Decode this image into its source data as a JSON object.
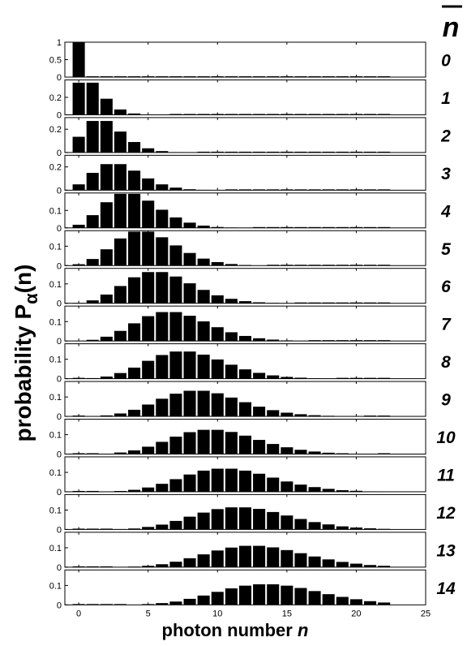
{
  "chart_data": {
    "type": "bar",
    "description_ylabel_main": "probability  P",
    "ylabel_sub": "α",
    "ylabel_tail": "(n)",
    "xlabel_main": "photon number",
    "xlabel_var": "n",
    "header_label": "n",
    "x_ticks": [
      "0",
      "5",
      "10",
      "15",
      "20",
      "25"
    ],
    "x_tick_values": [
      0,
      5,
      10,
      15,
      20,
      25
    ],
    "xlim": [
      -1,
      25
    ],
    "grid": false,
    "panels": [
      {
        "nbar": 0,
        "label": "0",
        "ylim": [
          0,
          1
        ],
        "y_ticks": [
          "0",
          "0.5",
          "1"
        ],
        "y_tick_values": [
          0,
          0.5,
          1
        ]
      },
      {
        "nbar": 1,
        "label": "1",
        "ylim": [
          0,
          0.4
        ],
        "y_ticks": [
          "0",
          "0.2"
        ],
        "y_tick_values": [
          0,
          0.2
        ]
      },
      {
        "nbar": 2,
        "label": "2",
        "ylim": [
          0,
          0.3
        ],
        "y_ticks": [
          "0",
          "0.2"
        ],
        "y_tick_values": [
          0,
          0.2
        ]
      },
      {
        "nbar": 3,
        "label": "3",
        "ylim": [
          0,
          0.3
        ],
        "y_ticks": [
          "0",
          "0.2"
        ],
        "y_tick_values": [
          0,
          0.2
        ]
      },
      {
        "nbar": 4,
        "label": "4",
        "ylim": [
          0,
          0.2
        ],
        "y_ticks": [
          "0",
          "0.1"
        ],
        "y_tick_values": [
          0,
          0.1
        ]
      },
      {
        "nbar": 5,
        "label": "5",
        "ylim": [
          0,
          0.18
        ],
        "y_ticks": [
          "0",
          "0.1"
        ],
        "y_tick_values": [
          0,
          0.1
        ]
      },
      {
        "nbar": 6,
        "label": "6",
        "ylim": [
          0,
          0.18
        ],
        "y_ticks": [
          "0",
          "0.1"
        ],
        "y_tick_values": [
          0,
          0.1
        ]
      },
      {
        "nbar": 7,
        "label": "7",
        "ylim": [
          0,
          0.18
        ],
        "y_ticks": [
          "0",
          "0.1"
        ],
        "y_tick_values": [
          0,
          0.1
        ]
      },
      {
        "nbar": 8,
        "label": "8",
        "ylim": [
          0,
          0.18
        ],
        "y_ticks": [
          "0",
          "0.1"
        ],
        "y_tick_values": [
          0,
          0.1
        ]
      },
      {
        "nbar": 9,
        "label": "9",
        "ylim": [
          0,
          0.18
        ],
        "y_ticks": [
          "0",
          "0.1"
        ],
        "y_tick_values": [
          0,
          0.1
        ]
      },
      {
        "nbar": 10,
        "label": "10",
        "ylim": [
          0,
          0.18
        ],
        "y_ticks": [
          "0",
          "0.1"
        ],
        "y_tick_values": [
          0,
          0.1
        ]
      },
      {
        "nbar": 11,
        "label": "11",
        "ylim": [
          0,
          0.18
        ],
        "y_ticks": [
          "0",
          "0.1"
        ],
        "y_tick_values": [
          0,
          0.1
        ]
      },
      {
        "nbar": 12,
        "label": "12",
        "ylim": [
          0,
          0.18
        ],
        "y_ticks": [
          "0",
          "0.1"
        ],
        "y_tick_values": [
          0,
          0.1
        ]
      },
      {
        "nbar": 13,
        "label": "13",
        "ylim": [
          0,
          0.18
        ],
        "y_ticks": [
          "0",
          "0.1"
        ],
        "y_tick_values": [
          0,
          0.1
        ]
      },
      {
        "nbar": 14,
        "label": "14",
        "ylim": [
          0,
          0.18
        ],
        "y_ticks": [
          "0",
          "0.1"
        ],
        "y_tick_values": [
          0,
          0.1
        ]
      }
    ],
    "x": [
      0,
      1,
      2,
      3,
      4,
      5,
      6,
      7,
      8,
      9,
      10,
      11,
      12,
      13,
      14,
      15,
      16,
      17,
      18,
      19,
      20,
      21,
      22
    ],
    "series": [
      {
        "values": [
          1.0,
          0,
          0,
          0,
          0,
          0,
          0,
          0,
          0,
          0,
          0,
          0,
          0,
          0,
          0,
          0,
          0,
          0,
          0,
          0,
          0,
          0,
          0
        ]
      },
      {
        "values": [
          0.368,
          0.368,
          0.184,
          0.061,
          0.015,
          0.003,
          0.001,
          0,
          0,
          0,
          0,
          0,
          0,
          0,
          0,
          0,
          0,
          0,
          0,
          0,
          0,
          0,
          0
        ]
      },
      {
        "values": [
          0.135,
          0.271,
          0.271,
          0.18,
          0.09,
          0.036,
          0.012,
          0.003,
          0.001,
          0,
          0,
          0,
          0,
          0,
          0,
          0,
          0,
          0,
          0,
          0,
          0,
          0,
          0
        ]
      },
      {
        "values": [
          0.05,
          0.149,
          0.224,
          0.224,
          0.168,
          0.101,
          0.05,
          0.022,
          0.008,
          0.003,
          0.001,
          0,
          0,
          0,
          0,
          0,
          0,
          0,
          0,
          0,
          0,
          0,
          0
        ]
      },
      {
        "values": [
          0.018,
          0.073,
          0.147,
          0.195,
          0.195,
          0.156,
          0.104,
          0.06,
          0.03,
          0.013,
          0.005,
          0.002,
          0.001,
          0,
          0,
          0,
          0,
          0,
          0,
          0,
          0,
          0,
          0
        ]
      },
      {
        "values": [
          0.007,
          0.034,
          0.084,
          0.14,
          0.175,
          0.175,
          0.146,
          0.104,
          0.065,
          0.036,
          0.018,
          0.008,
          0.003,
          0.001,
          0,
          0,
          0,
          0,
          0,
          0,
          0,
          0,
          0
        ]
      },
      {
        "values": [
          0.002,
          0.015,
          0.045,
          0.089,
          0.134,
          0.161,
          0.161,
          0.138,
          0.103,
          0.069,
          0.041,
          0.023,
          0.011,
          0.005,
          0.002,
          0.001,
          0,
          0,
          0,
          0,
          0,
          0,
          0
        ]
      },
      {
        "values": [
          0.001,
          0.006,
          0.022,
          0.052,
          0.091,
          0.128,
          0.149,
          0.149,
          0.13,
          0.101,
          0.071,
          0.045,
          0.026,
          0.014,
          0.007,
          0.003,
          0.001,
          0,
          0,
          0,
          0,
          0,
          0
        ]
      },
      {
        "values": [
          0,
          0.003,
          0.011,
          0.029,
          0.057,
          0.092,
          0.122,
          0.14,
          0.14,
          0.124,
          0.099,
          0.072,
          0.048,
          0.03,
          0.017,
          0.009,
          0.005,
          0.002,
          0.001,
          0,
          0,
          0,
          0
        ]
      },
      {
        "values": [
          0,
          0.001,
          0.005,
          0.015,
          0.034,
          0.061,
          0.091,
          0.117,
          0.132,
          0.132,
          0.119,
          0.097,
          0.073,
          0.05,
          0.032,
          0.019,
          0.011,
          0.006,
          0.003,
          0.001,
          0.001,
          0,
          0
        ]
      },
      {
        "values": [
          0,
          0,
          0.002,
          0.008,
          0.019,
          0.038,
          0.063,
          0.09,
          0.113,
          0.125,
          0.125,
          0.114,
          0.095,
          0.073,
          0.052,
          0.035,
          0.022,
          0.013,
          0.007,
          0.004,
          0.002,
          0.001,
          0
        ]
      },
      {
        "values": [
          0,
          0,
          0.001,
          0.004,
          0.01,
          0.022,
          0.041,
          0.065,
          0.089,
          0.109,
          0.119,
          0.119,
          0.109,
          0.093,
          0.073,
          0.053,
          0.037,
          0.024,
          0.015,
          0.008,
          0.005,
          0.002,
          0.001
        ]
      },
      {
        "values": [
          0,
          0,
          0,
          0.002,
          0.005,
          0.013,
          0.025,
          0.044,
          0.066,
          0.087,
          0.105,
          0.114,
          0.114,
          0.106,
          0.09,
          0.072,
          0.054,
          0.038,
          0.026,
          0.016,
          0.01,
          0.006,
          0.003
        ]
      },
      {
        "values": [
          0,
          0,
          0,
          0.001,
          0.003,
          0.007,
          0.015,
          0.028,
          0.046,
          0.066,
          0.086,
          0.101,
          0.11,
          0.11,
          0.102,
          0.088,
          0.072,
          0.055,
          0.04,
          0.027,
          0.018,
          0.011,
          0.007
        ]
      },
      {
        "values": [
          0,
          0,
          0,
          0,
          0.001,
          0.004,
          0.009,
          0.017,
          0.031,
          0.048,
          0.067,
          0.085,
          0.099,
          0.106,
          0.106,
          0.099,
          0.087,
          0.071,
          0.055,
          0.041,
          0.029,
          0.019,
          0.012
        ]
      }
    ]
  }
}
